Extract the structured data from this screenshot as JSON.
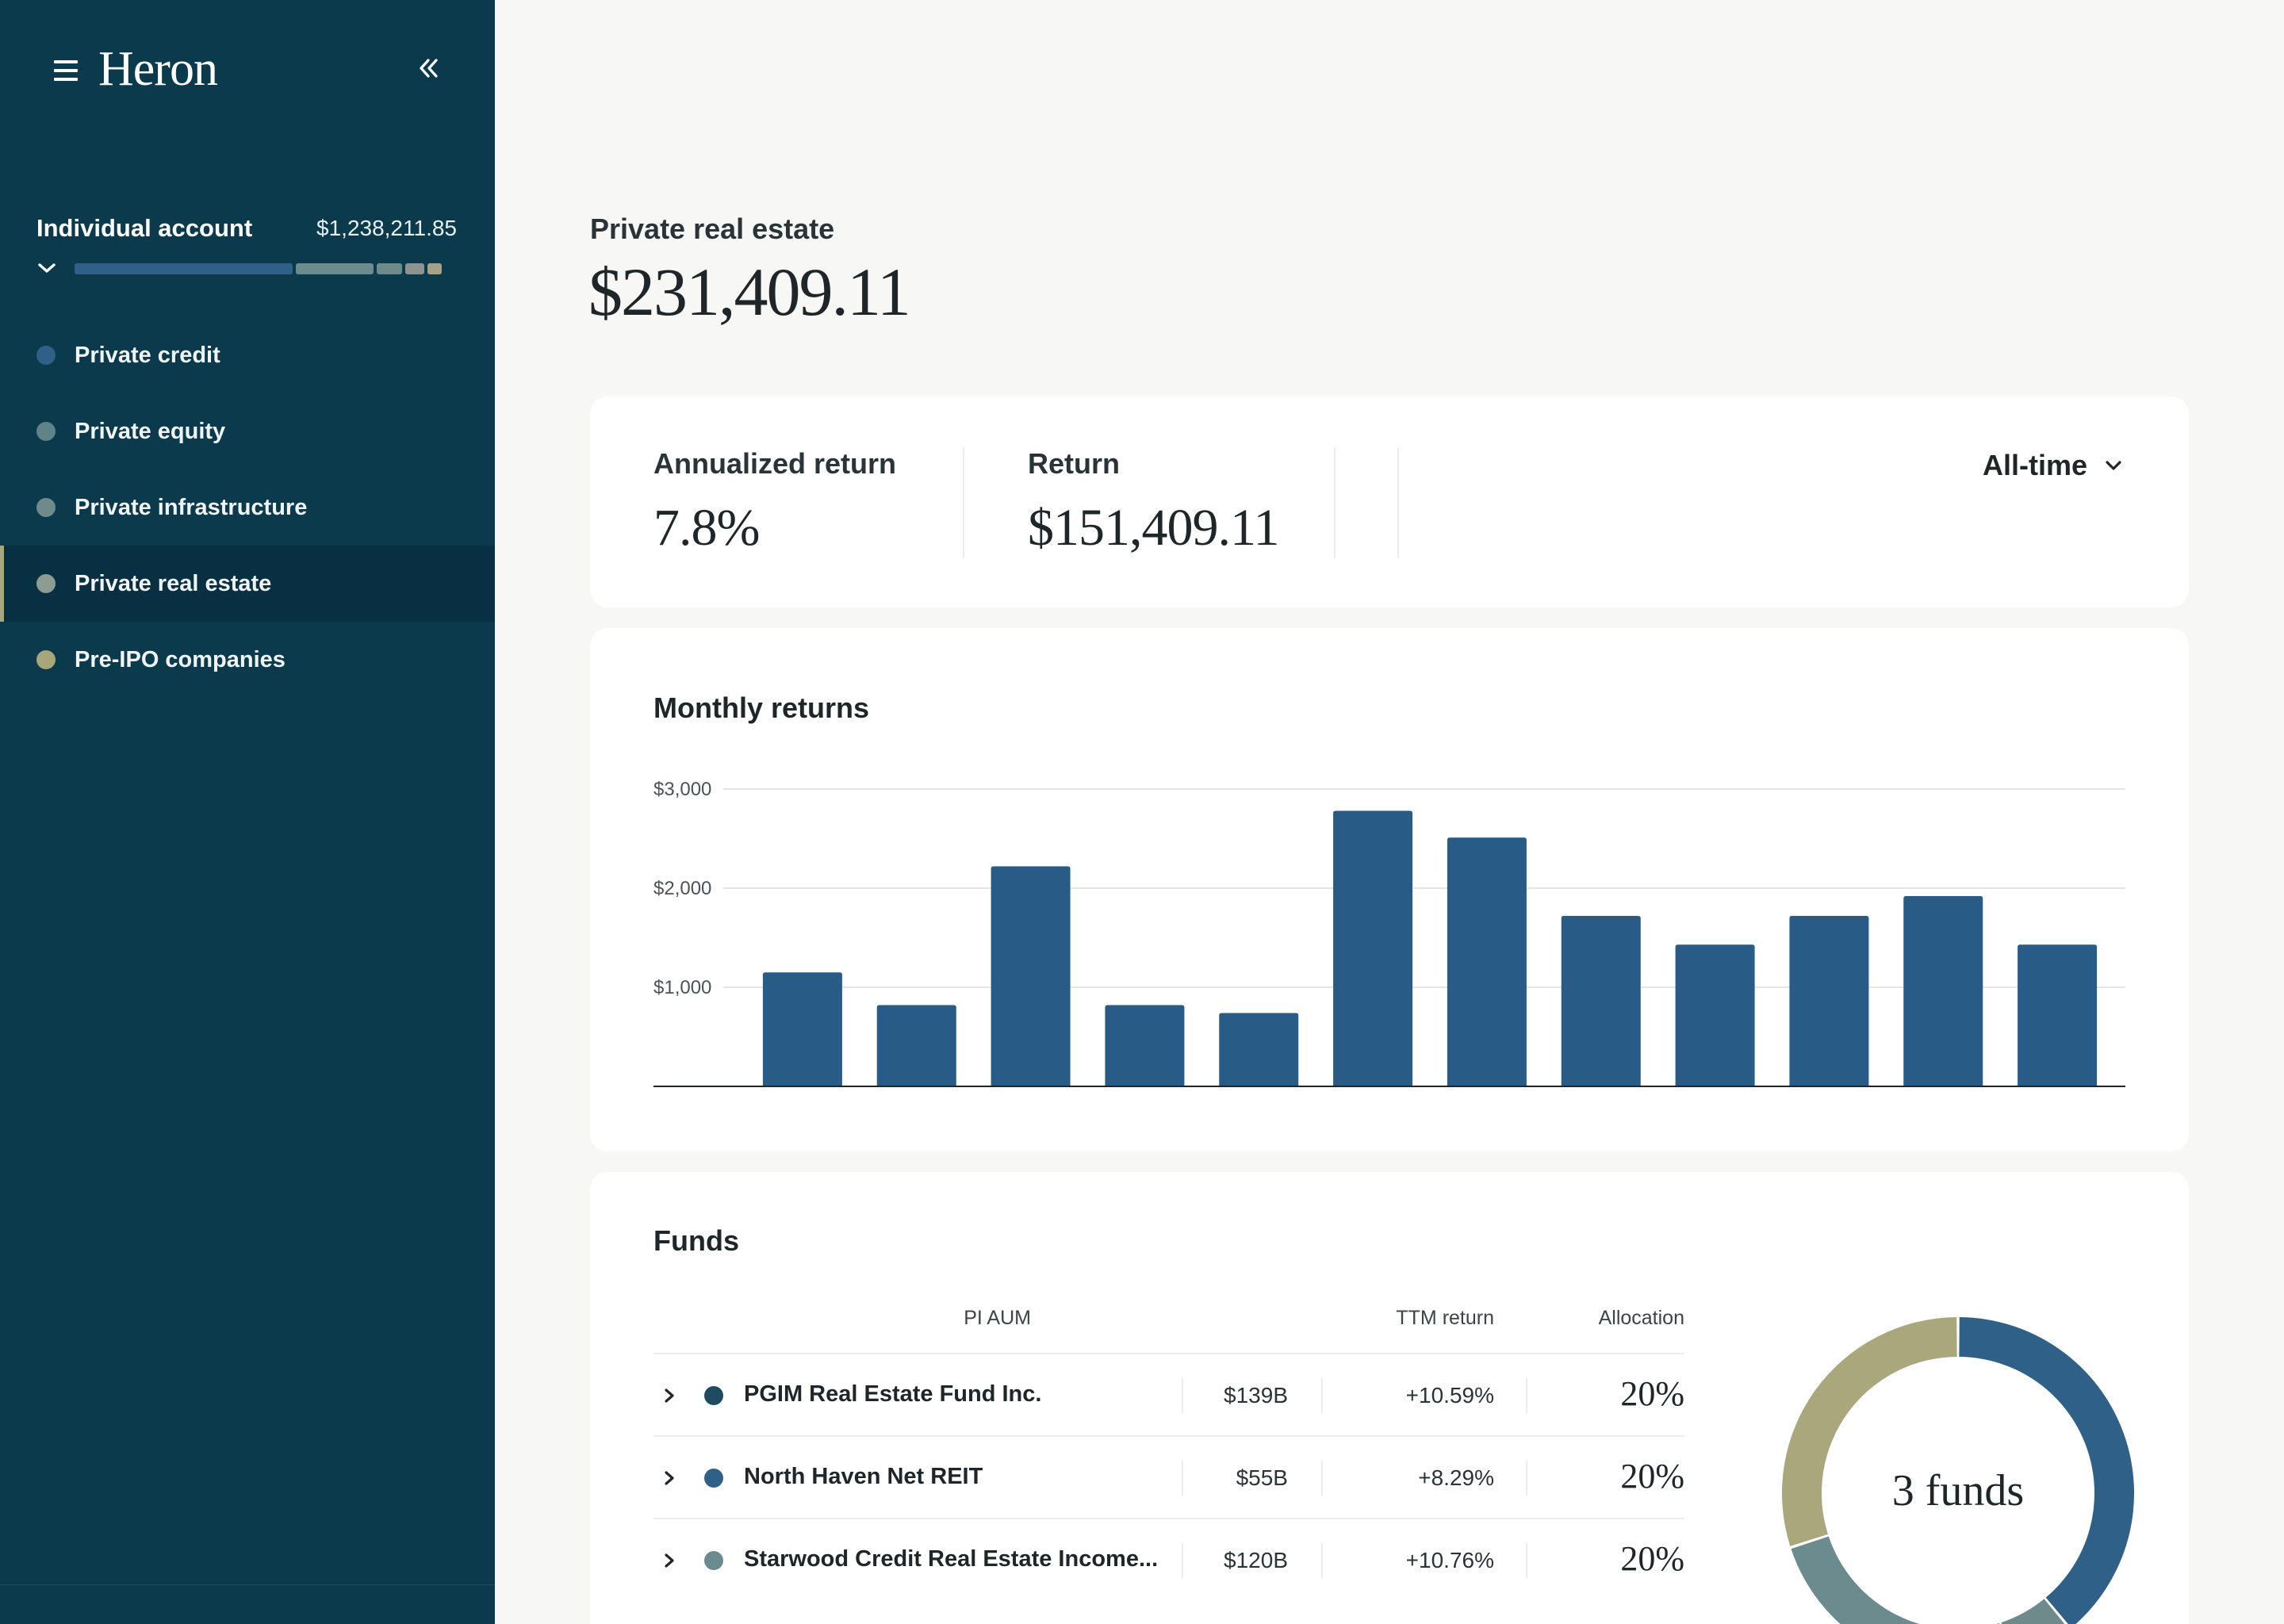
{
  "app": {
    "logo": "Heron"
  },
  "account": {
    "name": "Individual account",
    "value": "$1,238,211.85",
    "allocation_colors": [
      "#2f6088",
      "#6b8b8e",
      "#6f8a8a",
      "#8d9390",
      "#a4a386"
    ],
    "allocation_fractions": [
      0.59,
      0.21,
      0.07,
      0.05,
      0.04
    ]
  },
  "nav": {
    "items": [
      {
        "label": "Private credit",
        "color": "#2f6088",
        "active": false
      },
      {
        "label": "Private equity",
        "color": "#5f8387",
        "active": false
      },
      {
        "label": "Private infrastructure",
        "color": "#6f8a8a",
        "active": false
      },
      {
        "label": "Private real estate",
        "color": "#8d9b93",
        "active": true
      },
      {
        "label": "Pre-IPO companies",
        "color": "#a9a67a",
        "active": false
      }
    ]
  },
  "page": {
    "subtitle": "Private real estate",
    "total": "$231,409.11"
  },
  "metrics": {
    "annualized_label": "Annualized return",
    "annualized_value": "7.8%",
    "return_label": "Return",
    "return_value": "$151,409.11",
    "range": "All-time"
  },
  "chart_section": {
    "title": "Monthly returns"
  },
  "chart_data": {
    "type": "bar",
    "title": "Monthly returns",
    "categories": [
      "",
      "",
      "",
      "",
      "",
      "",
      "",
      "",
      "",
      "",
      "",
      ""
    ],
    "values": [
      1150,
      820,
      2220,
      820,
      740,
      2780,
      2510,
      1720,
      1430,
      1720,
      1920,
      1430
    ],
    "ylim": [
      0,
      3000
    ],
    "yticks": [
      {
        "value": 1000,
        "label": "$1,000"
      },
      {
        "value": 2000,
        "label": "$2,000"
      },
      {
        "value": 3000,
        "label": "$3,000"
      }
    ],
    "color": "#285b86",
    "grid": true
  },
  "funds": {
    "title": "Funds",
    "headers": {
      "aum": "PI AUM",
      "ttm": "TTM return",
      "allocation": "Allocation"
    },
    "rows": [
      {
        "name": "PGIM Real Estate Fund Inc.",
        "aum": "$139B",
        "ttm": "+10.59%",
        "allocation": "20%",
        "color": "#1d4b60"
      },
      {
        "name": "North Haven Net REIT",
        "aum": "$55B",
        "ttm": "+8.29%",
        "allocation": "20%",
        "color": "#2f6088"
      },
      {
        "name": "Starwood Credit Real Estate Income...",
        "aum": "$120B",
        "ttm": "+10.76%",
        "allocation": "20%",
        "color": "#6b8b8e"
      }
    ],
    "donut_label": "3 funds",
    "donut_segments": [
      {
        "fraction": 0.39,
        "color": "#2f6088"
      },
      {
        "fraction": 0.06,
        "color": "#6f8a8a"
      },
      {
        "fraction": 0.25,
        "color": "#6b8b8e"
      },
      {
        "fraction": 0.3,
        "color": "#aaa77c"
      }
    ]
  }
}
